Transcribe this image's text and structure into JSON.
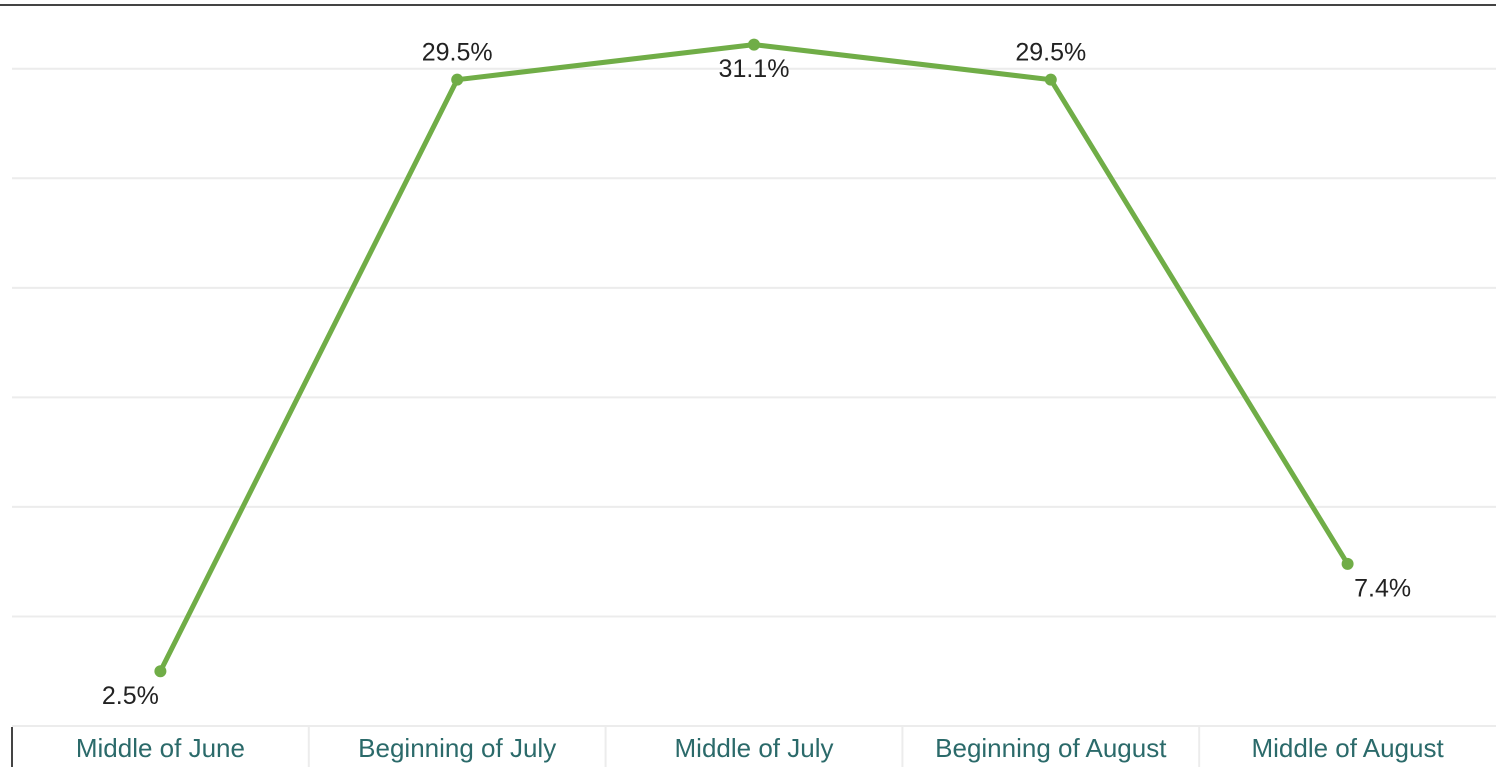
{
  "chart_data": {
    "type": "line",
    "categories": [
      "Middle of June",
      "Beginning of July",
      "Middle of July",
      "Beginning of August",
      "Middle of August"
    ],
    "series": [
      {
        "color": "#70ad47",
        "values": [
          2.5,
          29.5,
          31.1,
          29.5,
          7.4
        ],
        "value_labels": [
          "2.5%",
          "29.5%",
          "31.1%",
          "29.5%",
          "7.4%"
        ]
      }
    ],
    "ylim": [
      0,
      33
    ],
    "yticks": [
      0,
      5,
      10,
      15,
      20,
      25,
      30
    ],
    "grid": true
  }
}
